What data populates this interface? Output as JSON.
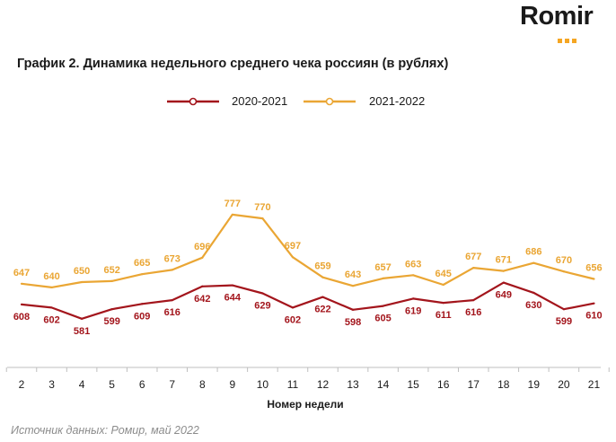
{
  "logo": {
    "text": "Romir",
    "dot_color": "#f5a623"
  },
  "title": "График 2. Динамика недельного среднего чека россиян (в рублях)",
  "source": "Источник данных: Ромир, май 2022",
  "chart_data": {
    "type": "line",
    "title": "График 2. Динамика недельного среднего чека россиян (в рублях)",
    "xlabel": "Номер недели",
    "ylabel": "",
    "x": [
      2,
      3,
      4,
      5,
      6,
      7,
      8,
      9,
      10,
      11,
      12,
      13,
      14,
      15,
      16,
      17,
      18,
      19,
      20,
      21
    ],
    "ylim": [
      450,
      850
    ],
    "grid": false,
    "legend": "top-center",
    "series": [
      {
        "name": "2020-2021",
        "color": "#a3151c",
        "values": [
          608,
          602,
          581,
          599,
          609,
          616,
          642,
          644,
          629,
          602,
          622,
          598,
          605,
          619,
          611,
          616,
          649,
          630,
          599,
          610
        ]
      },
      {
        "name": "2021-2022",
        "color": "#eaa634",
        "values": [
          647,
          640,
          650,
          652,
          665,
          673,
          696,
          777,
          770,
          697,
          659,
          643,
          657,
          663,
          645,
          677,
          671,
          686,
          670,
          656
        ]
      }
    ]
  }
}
